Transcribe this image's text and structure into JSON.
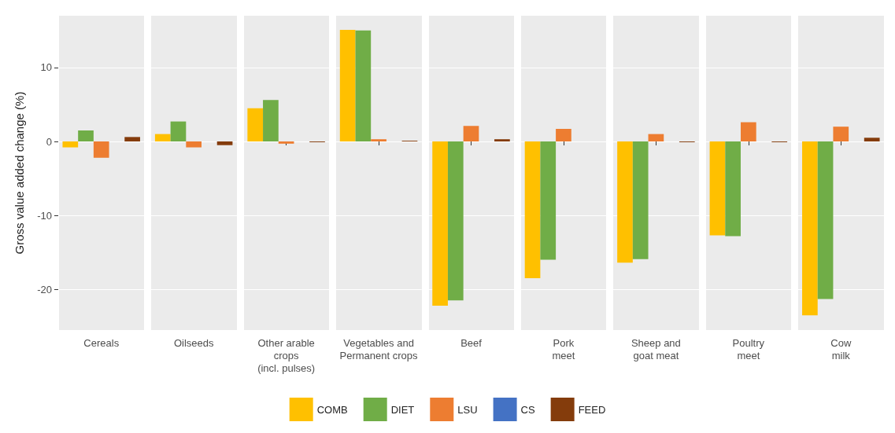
{
  "chart_data": {
    "type": "bar",
    "ylabel": "Gross value added change (%)",
    "categories": [
      "Cereals",
      "Oilseeds",
      "Other arable\ncrops\n(incl. pulses)",
      "Vegetables and\nPermanent crops",
      "Beef",
      "Pork\nmeet",
      "Sheep and\ngoat meat",
      "Poultry\nmeet",
      "Cow\nmilk"
    ],
    "series": [
      {
        "name": "COMB",
        "color": "#ffc000",
        "values": [
          -0.8,
          1.0,
          4.5,
          15.1,
          -22.2,
          -18.5,
          -16.4,
          -12.7,
          -23.5
        ]
      },
      {
        "name": "DIET",
        "color": "#70ad47",
        "values": [
          1.5,
          2.7,
          5.6,
          15.0,
          -21.5,
          -16.0,
          -15.9,
          -12.8,
          -21.3
        ]
      },
      {
        "name": "LSU",
        "color": "#ed7d31",
        "values": [
          -2.2,
          -0.8,
          -0.3,
          0.3,
          2.1,
          1.7,
          1.0,
          2.6,
          2.0
        ]
      },
      {
        "name": "CS",
        "color": "#4472c4",
        "values": [
          0,
          0,
          0,
          0,
          0,
          0,
          0,
          0,
          0
        ]
      },
      {
        "name": "FEED",
        "color": "#843c0c",
        "values": [
          0.6,
          -0.5,
          -0.1,
          0.1,
          0.3,
          0,
          -0.1,
          -0.1,
          0.5
        ]
      }
    ],
    "ylim": [
      -25.5,
      17
    ],
    "yticks": [
      -20,
      -10,
      0,
      10
    ],
    "grid": true,
    "legend": "bottom"
  }
}
